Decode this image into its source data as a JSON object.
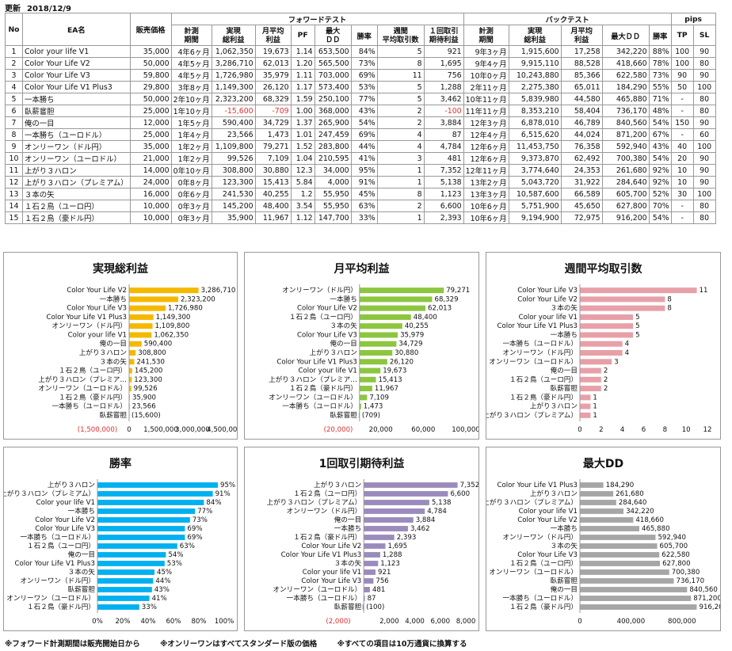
{
  "update": {
    "label": "更新",
    "date": "2018/12/9"
  },
  "headers": {
    "no": "No",
    "ea": "EA名",
    "price": "販売価格",
    "forward": "フォワードテスト",
    "back": "バックテスト",
    "pips": "pips",
    "f_period": [
      "計測",
      "期間"
    ],
    "f_profit": [
      "実現",
      "総利益"
    ],
    "f_monthly": [
      "月平均",
      "利益"
    ],
    "f_pf": "PF",
    "f_dd": [
      "最大",
      "ＤＤ"
    ],
    "f_win": "勝率",
    "f_weekly": [
      "週間",
      "平均取引数"
    ],
    "f_exp": [
      "１回取引",
      "期待利益"
    ],
    "b_period": [
      "計測",
      "期間"
    ],
    "b_profit": [
      "実現",
      "総利益"
    ],
    "b_monthly": [
      "月平均",
      "利益"
    ],
    "b_dd": "最大ＤＤ",
    "b_win": "勝率",
    "tp": "TP",
    "sl": "SL"
  },
  "rows": [
    [
      "1",
      "Color your life V1",
      "35,000",
      "4年6ヶ月",
      "1,062,350",
      "19,673",
      "1.14",
      "653,500",
      "84%",
      "5",
      "921",
      "9年3ヶ月",
      "1,915,600",
      "17,258",
      "342,220",
      "88%",
      "100",
      "90"
    ],
    [
      "2",
      "Color Your Life V2",
      "50,000",
      "4年5ヶ月",
      "3,286,710",
      "62,013",
      "1.20",
      "565,500",
      "73%",
      "8",
      "1,695",
      "9年4ヶ月",
      "9,915,110",
      "88,528",
      "418,660",
      "78%",
      "100",
      "80"
    ],
    [
      "3",
      "Color Your Life V3",
      "59,800",
      "4年5ヶ月",
      "1,726,980",
      "35,979",
      "1.11",
      "703,000",
      "69%",
      "11",
      "756",
      "10年0ヶ月",
      "10,243,880",
      "85,366",
      "622,580",
      "73%",
      "90",
      "90"
    ],
    [
      "4",
      "Color Your Life V1 Plus3",
      "29,800",
      "3年8ヶ月",
      "1,149,300",
      "26,120",
      "1.17",
      "573,400",
      "53%",
      "5",
      "1,288",
      "2年11ヶ月",
      "2,275,380",
      "65,011",
      "184,290",
      "55%",
      "50",
      "100"
    ],
    [
      "5",
      "一本勝ち",
      "50,000",
      "2年10ヶ月",
      "2,323,200",
      "68,329",
      "1.59",
      "250,100",
      "77%",
      "5",
      "3,462",
      "10年11ヶ月",
      "5,839,980",
      "44,580",
      "465,880",
      "71%",
      "-",
      "80"
    ],
    [
      "6",
      "臥薪嘗胆",
      "25,000",
      "1年10ヶ月",
      "-15,600",
      "-709",
      "1.00",
      "368,000",
      "43%",
      "2",
      "-100",
      "11年11ヶ月",
      "8,353,210",
      "58,404",
      "736,170",
      "48%",
      "-",
      "80"
    ],
    [
      "7",
      "俺の一目",
      "12,000",
      "1年5ヶ月",
      "590,400",
      "34,729",
      "1.37",
      "265,900",
      "54%",
      "2",
      "3,884",
      "12年3ヶ月",
      "6,878,010",
      "46,789",
      "840,560",
      "54%",
      "150",
      "90"
    ],
    [
      "8",
      "一本勝ち（ユーロドル）",
      "25,000",
      "1年4ヶ月",
      "23,566",
      "1,473",
      "1.01",
      "247,459",
      "69%",
      "4",
      "87",
      "12年4ヶ月",
      "6,515,620",
      "44,024",
      "871,200",
      "67%",
      "-",
      "60"
    ],
    [
      "9",
      "オンリーワン（ドル円）",
      "35,000",
      "1年2ヶ月",
      "1,109,800",
      "79,271",
      "1.52",
      "283,800",
      "44%",
      "4",
      "4,784",
      "12年6ヶ月",
      "11,453,750",
      "76,358",
      "592,940",
      "43%",
      "40",
      "100"
    ],
    [
      "10",
      "オンリーワン（ユーロドル）",
      "21,000",
      "1年2ヶ月",
      "99,526",
      "7,109",
      "1.04",
      "210,595",
      "41%",
      "3",
      "481",
      "12年6ヶ月",
      "9,373,870",
      "62,492",
      "700,380",
      "54%",
      "20",
      "90"
    ],
    [
      "11",
      "上がり３ハロン",
      "14,000",
      "0年10ヶ月",
      "308,800",
      "30,880",
      "12.3",
      "34,000",
      "95%",
      "1",
      "7,352",
      "12年11ヶ月",
      "3,774,640",
      "24,353",
      "261,680",
      "92%",
      "10",
      "90"
    ],
    [
      "12",
      "上がり３ハロン（プレミアム）",
      "24,000",
      "0年8ヶ月",
      "123,300",
      "15,413",
      "5.84",
      "4,000",
      "91%",
      "1",
      "5,138",
      "13年2ヶ月",
      "5,043,720",
      "31,922",
      "284,640",
      "92%",
      "10",
      "90"
    ],
    [
      "13",
      "３本の矢",
      "16,000",
      "0年6ヶ月",
      "241,530",
      "40,255",
      "1.2",
      "55,950",
      "45%",
      "8",
      "1,123",
      "13年3ヶ月",
      "10,587,600",
      "66,589",
      "605,700",
      "52%",
      "30",
      "100"
    ],
    [
      "14",
      "１石２鳥（ユーロ円）",
      "10,000",
      "0年3ヶ月",
      "145,200",
      "48,400",
      "3.54",
      "55,950",
      "63%",
      "2",
      "6,600",
      "10年6ヶ月",
      "5,751,900",
      "45,650",
      "627,800",
      "70%",
      "-",
      "80"
    ],
    [
      "15",
      "１石２鳥（豪ドル円）",
      "10,000",
      "0年3ヶ月",
      "35,900",
      "11,967",
      "1.12",
      "147,700",
      "33%",
      "1",
      "2,393",
      "10年6ヶ月",
      "9,194,900",
      "72,975",
      "916,200",
      "54%",
      "-",
      "80"
    ]
  ],
  "chart_data": [
    {
      "type": "bar",
      "title": "実現総利益",
      "color": "#f5b800",
      "categories": [
        "Color Your Life V2",
        "一本勝ち",
        "Color Your Life V3",
        "Color Your Life V1 Plus3",
        "オンリーワン（ドル円）",
        "Color your life V1",
        "俺の一目",
        "上がり３ハロン",
        "３本の矢",
        "１石２鳥（ユーロ円）",
        "上がり３ハロン（プレミア…",
        "オンリーワン（ユーロドル）",
        "１石２鳥（豪ドル円）",
        "一本勝ち（ユーロドル）",
        "臥薪嘗胆"
      ],
      "values": [
        3286710,
        2323200,
        1726980,
        1149300,
        1109800,
        1062350,
        590400,
        308800,
        241530,
        145200,
        123300,
        99526,
        35900,
        23566,
        -15600
      ],
      "labels": [
        "3,286,710",
        "2,323,200",
        "1,726,980",
        "1,149,300",
        "1,109,800",
        "1,062,350",
        "590,400",
        "308,800",
        "241,530",
        "145,200",
        "123,300",
        "99,526",
        "35,900",
        "23,566",
        "(15,600)"
      ],
      "xlim": [
        -1500000,
        4500000
      ],
      "ticks": [
        -1500000,
        0,
        1500000,
        3000000,
        4500000
      ],
      "tick_labels": [
        "(1,500,000)",
        "0",
        "1,500,000",
        "3,000,000",
        "4,500,000"
      ]
    },
    {
      "type": "bar",
      "title": "月平均利益",
      "color": "#8cc63f",
      "categories": [
        "オンリーワン（ドル円）",
        "一本勝ち",
        "Color Your Life V2",
        "１石２鳥（ユーロ円）",
        "３本の矢",
        "Color Your Life V3",
        "俺の一目",
        "上がり３ハロン",
        "Color Your Life V1 Plus3",
        "Color your life V1",
        "上がり３ハロン（プレミア…",
        "１石２鳥（豪ドル円）",
        "オンリーワン（ユーロドル）",
        "一本勝ち（ユーロドル）",
        "臥薪嘗胆"
      ],
      "values": [
        79271,
        68329,
        62013,
        48400,
        40255,
        35979,
        34729,
        30880,
        26120,
        19673,
        15413,
        11967,
        7109,
        1473,
        -709
      ],
      "labels": [
        "79,271",
        "68,329",
        "62,013",
        "48,400",
        "40,255",
        "35,979",
        "34,729",
        "30,880",
        "26,120",
        "19,673",
        "15,413",
        "11,967",
        "7,109",
        "1,473",
        "(709)"
      ],
      "xlim": [
        -20000,
        100000
      ],
      "ticks": [
        -20000,
        20000,
        60000,
        100000
      ],
      "tick_labels": [
        "(20,000)",
        "20,000",
        "60,000",
        "100,000"
      ]
    },
    {
      "type": "bar",
      "title": "週間平均取引数",
      "color": "#e8a0a8",
      "categories": [
        "Color Your Life V3",
        "Color Your Life V2",
        "３本の矢",
        "Color your life V1",
        "Color Your Life V1 Plus3",
        "一本勝ち",
        "一本勝ち（ユーロドル）",
        "オンリーワン（ドル円）",
        "オンリーワン（ユーロドル）",
        "俺の一目",
        "１石２鳥（ユーロ円）",
        "臥薪嘗胆",
        "１石２鳥（豪ドル円）",
        "上がり３ハロン",
        "上がり３ハロン（プレミアム）"
      ],
      "values": [
        11,
        8,
        8,
        5,
        5,
        5,
        4,
        4,
        3,
        2,
        2,
        2,
        1,
        1,
        1
      ],
      "labels": [
        "11",
        "8",
        "8",
        "5",
        "5",
        "5",
        "4",
        "4",
        "3",
        "2",
        "2",
        "2",
        "1",
        "1",
        "1"
      ],
      "xlim": [
        0,
        12
      ],
      "ticks": [
        0,
        2,
        4,
        6,
        8,
        10,
        12
      ],
      "tick_labels": [
        "0",
        "2",
        "4",
        "6",
        "8",
        "10",
        "12"
      ]
    },
    {
      "type": "bar",
      "title": "勝率",
      "color": "#00b0f0",
      "categories": [
        "上がり３ハロン",
        "上がり３ハロン（プレミアム）",
        "Color your life V1",
        "一本勝ち",
        "Color Your Life V2",
        "Color Your Life V3",
        "一本勝ち（ユーロドル）",
        "１石２鳥（ユーロ円）",
        "俺の一目",
        "Color Your Life V1 Plus3",
        "３本の矢",
        "オンリーワン（ドル円）",
        "臥薪嘗胆",
        "オンリーワン（ユーロドル）",
        "１石２鳥（豪ドル円）"
      ],
      "values": [
        95,
        91,
        84,
        77,
        73,
        69,
        69,
        63,
        54,
        53,
        45,
        44,
        43,
        41,
        33
      ],
      "labels": [
        "95%",
        "91%",
        "84%",
        "77%",
        "73%",
        "69%",
        "69%",
        "63%",
        "54%",
        "53%",
        "45%",
        "44%",
        "43%",
        "41%",
        "33%"
      ],
      "xlim": [
        0,
        100
      ],
      "ticks": [
        0,
        20,
        40,
        60,
        80,
        100
      ],
      "tick_labels": [
        "0%",
        "20%",
        "40%",
        "60%",
        "80%",
        "100%"
      ]
    },
    {
      "type": "bar",
      "title": "1回取引期待利益",
      "color": "#9b8bbd",
      "categories": [
        "上がり３ハロン",
        "１石２鳥（ユーロ円）",
        "上がり３ハロン（プレミアム）",
        "オンリーワン（ドル円）",
        "俺の一目",
        "一本勝ち",
        "１石２鳥（豪ドル円）",
        "Color Your Life V2",
        "Color Your Life V1 Plus3",
        "３本の矢",
        "Color your life V1",
        "Color Your Life V3",
        "オンリーワン（ユーロドル）",
        "一本勝ち（ユーロドル）",
        "臥薪嘗胆"
      ],
      "values": [
        7352,
        6600,
        5138,
        4784,
        3884,
        3462,
        2393,
        1695,
        1288,
        1123,
        921,
        756,
        481,
        87,
        -100
      ],
      "labels": [
        "7,352",
        "6,600",
        "5,138",
        "4,784",
        "3,884",
        "3,462",
        "2,393",
        "1,695",
        "1,288",
        "1,123",
        "921",
        "756",
        "481",
        "87",
        "(100)"
      ],
      "xlim": [
        -2000,
        8000
      ],
      "ticks": [
        -2000,
        2000,
        4000,
        6000,
        8000
      ],
      "tick_labels": [
        "(2,000)",
        "2,000",
        "4,000",
        "6,000",
        "8,000"
      ]
    },
    {
      "type": "bar",
      "title": "最大DD",
      "color": "#a6a6a6",
      "categories": [
        "Color Your Life V1 Plus3",
        "上がり３ハロン",
        "上がり３ハロン（プレミアム）",
        "Color your life V1",
        "Color Your Life V2",
        "一本勝ち",
        "オンリーワン（ドル円）",
        "３本の矢",
        "Color Your Life V3",
        "１石２鳥（ユーロ円）",
        "オンリーワン（ユーロドル）",
        "臥薪嘗胆",
        "俺の一目",
        "一本勝ち（ユーロドル）",
        "１石２鳥（豪ドル円）"
      ],
      "values": [
        184290,
        261680,
        284640,
        342220,
        418660,
        465880,
        592940,
        605700,
        622580,
        627800,
        700380,
        736170,
        840560,
        871200,
        916200
      ],
      "labels": [
        "184,290",
        "261,680",
        "284,640",
        "342,220",
        "418,660",
        "465,880",
        "592,940",
        "605,700",
        "622,580",
        "627,800",
        "700,380",
        "736,170",
        "840,560",
        "871,200",
        "916,200"
      ],
      "xlim": [
        0,
        1000000
      ],
      "ticks": [
        0,
        400000,
        800000
      ],
      "tick_labels": [
        "0",
        "400,000",
        "800,000"
      ]
    }
  ],
  "footnotes": [
    "※フォワード計測期間は販売開始日から",
    "※オンリーワンはすべてスタンダード版の価格",
    "※すべての項目は10万通貨に換算する"
  ]
}
